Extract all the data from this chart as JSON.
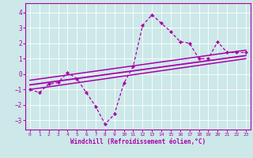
{
  "xlabel": "Windchill (Refroidissement éolien,°C)",
  "bg_color": "#cce8e8",
  "line_color": "#aa00aa",
  "grid_color": "#ffffff",
  "xlim": [
    -0.5,
    23.5
  ],
  "ylim": [
    -3.6,
    4.6
  ],
  "xticks": [
    0,
    1,
    2,
    3,
    4,
    5,
    6,
    7,
    8,
    9,
    10,
    11,
    12,
    13,
    14,
    15,
    16,
    17,
    18,
    19,
    20,
    21,
    22,
    23
  ],
  "yticks": [
    -3,
    -2,
    -1,
    0,
    1,
    2,
    3,
    4
  ],
  "data_x": [
    0,
    1,
    2,
    3,
    4,
    5,
    6,
    7,
    8,
    9,
    10,
    11,
    12,
    13,
    14,
    15,
    16,
    17,
    18,
    19,
    20,
    21,
    22,
    23
  ],
  "data_y": [
    -1.0,
    -1.2,
    -0.65,
    -0.55,
    0.1,
    -0.3,
    -1.2,
    -2.1,
    -3.25,
    -2.6,
    -0.6,
    0.5,
    3.15,
    3.85,
    3.3,
    2.75,
    2.1,
    2.0,
    1.0,
    1.0,
    2.1,
    1.4,
    1.4,
    1.4
  ],
  "trend1_x": [
    0,
    23
  ],
  "trend1_y": [
    -1.0,
    1.0
  ],
  "trend2_x": [
    0,
    23
  ],
  "trend2_y": [
    -0.7,
    1.2
  ],
  "trend3_x": [
    0,
    23
  ],
  "trend3_y": [
    -0.4,
    1.55
  ]
}
